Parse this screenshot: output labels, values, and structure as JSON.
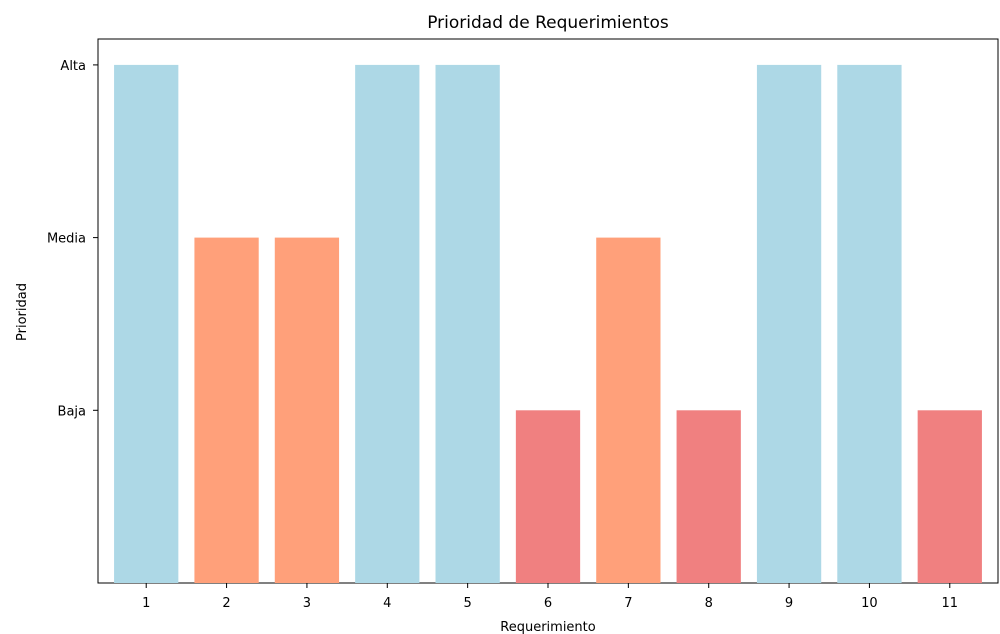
{
  "chart_data": {
    "type": "bar",
    "title": "Prioridad de Requerimientos",
    "xlabel": "Requerimiento",
    "ylabel": "Prioridad",
    "categories": [
      "1",
      "2",
      "3",
      "4",
      "5",
      "6",
      "7",
      "8",
      "9",
      "10",
      "11"
    ],
    "values": [
      3,
      2,
      2,
      3,
      3,
      1,
      2,
      1,
      3,
      3,
      1
    ],
    "value_labels": [
      "Alta",
      "Media",
      "Media",
      "Alta",
      "Alta",
      "Baja",
      "Media",
      "Baja",
      "Alta",
      "Alta",
      "Baja"
    ],
    "yticks": [
      {
        "value": 1,
        "label": "Baja"
      },
      {
        "value": 2,
        "label": "Media"
      },
      {
        "value": 3,
        "label": "Alta"
      }
    ],
    "ylim": [
      0,
      3.15
    ],
    "grid": false,
    "legend": false,
    "colors": {
      "Alta": "#add8e6",
      "Media": "#ffa07a",
      "Baja": "#f08080"
    }
  }
}
